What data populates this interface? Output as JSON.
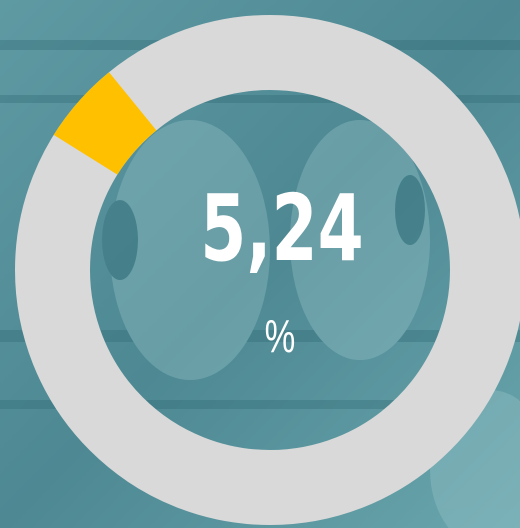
{
  "chart_data": {
    "type": "donut",
    "value": 5.24,
    "value_label": "5,24",
    "unit": "%",
    "ylim": [
      0,
      100
    ],
    "color": "#ffc000",
    "track_color": "#d9d9d9"
  }
}
